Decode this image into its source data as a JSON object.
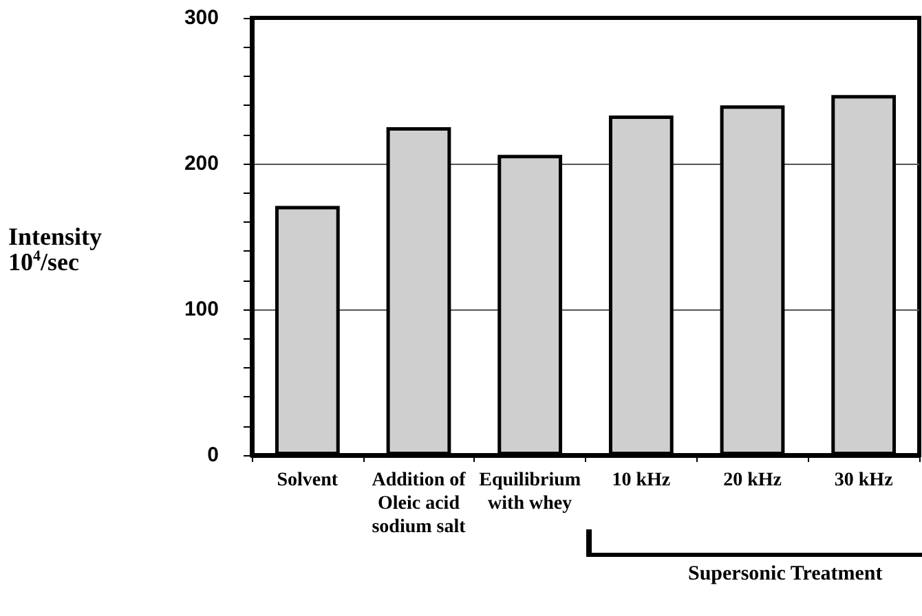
{
  "chart_data": {
    "type": "bar",
    "ylabel": "Intensity\n10$^{4}$/sec",
    "categories": [
      "Solvent",
      "Addition of\nOleic acid\nsodium salt",
      "Equilibrium\nwith whey",
      "10 kHz",
      "20 kHz",
      "30 kHz"
    ],
    "values": [
      171,
      225,
      206,
      233,
      240,
      247
    ],
    "color": "#cfcfcf",
    "ylim": [
      0,
      300
    ],
    "yticks": [
      0,
      100,
      200,
      300
    ],
    "grid": "y",
    "annotations": [
      "Supersonic Treatment"
    ]
  }
}
